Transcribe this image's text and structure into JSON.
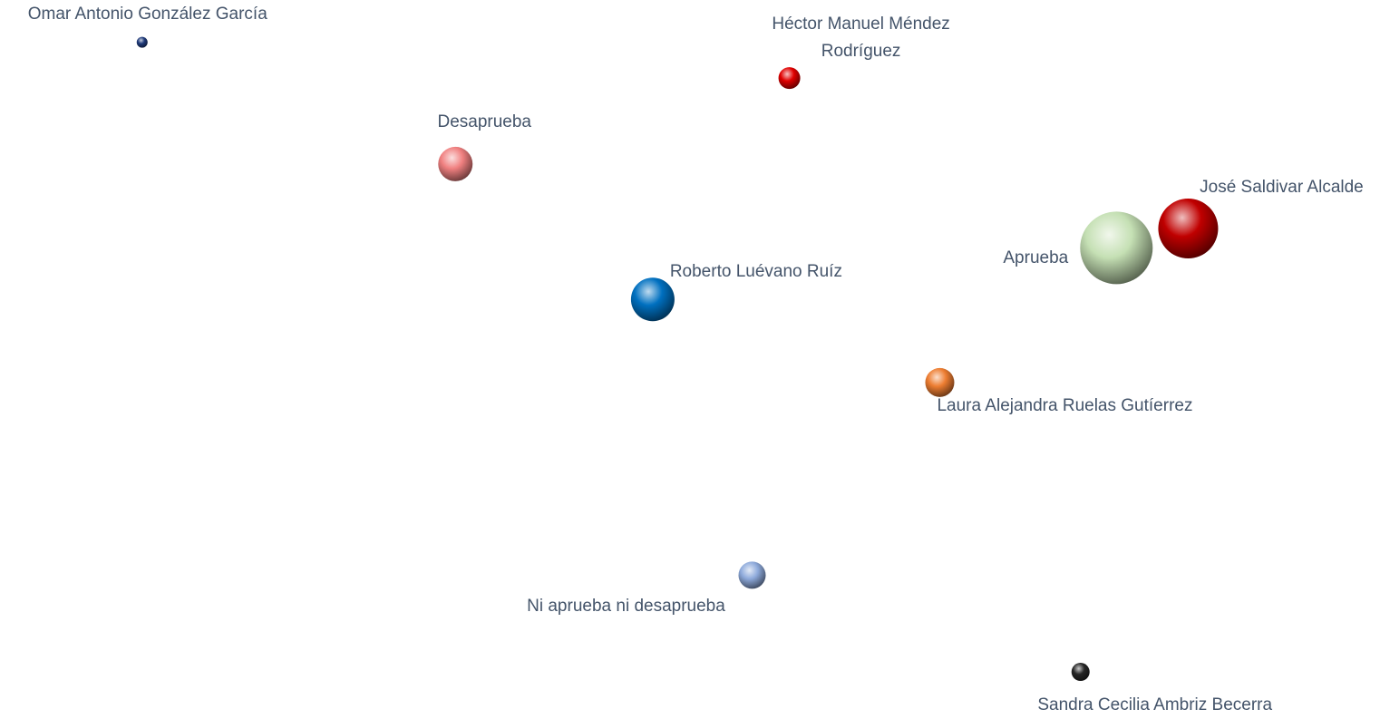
{
  "chart_data": {
    "type": "bubble",
    "labels": [
      "Omar Antonio González García",
      "Héctor Manuel Méndez Rodríguez",
      "Desaprueba",
      "José Saldivar Alcalde",
      "Aprueba",
      "Roberto Luévano Ruíz",
      "Laura Alejandra Ruelas Gutíerrez",
      "Ni aprueba ni desaprueba",
      "Sandra Cecilia Ambriz Becerra"
    ],
    "x": [
      10.3,
      57.2,
      33.0,
      86.1,
      80.9,
      47.3,
      68.1,
      54.5,
      78.3
    ],
    "values": [
      94.1,
      89.1,
      77.1,
      68.1,
      65.4,
      58.2,
      46.6,
      19.7,
      6.2
    ],
    "sizes": [
      6,
      12,
      19,
      33,
      40,
      24,
      16,
      15,
      10
    ],
    "colors": [
      "#1f3a7a",
      "#e00000",
      "#f08080",
      "#c00000",
      "#c5e0b4",
      "#0070c0",
      "#ed7d31",
      "#8eaadb",
      "#262626"
    ],
    "xlim": [
      0,
      100
    ],
    "ylim": [
      0,
      100
    ]
  }
}
